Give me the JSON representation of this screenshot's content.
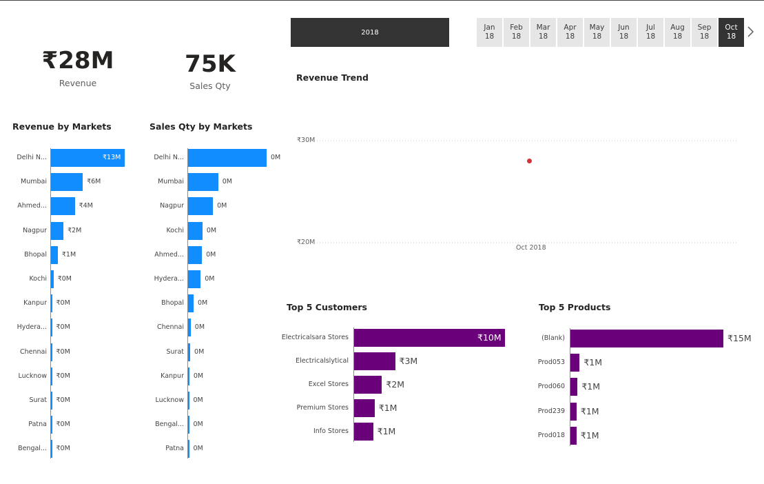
{
  "kpis": {
    "revenue": {
      "value": "₹28M",
      "label": "Revenue"
    },
    "sales_qty": {
      "value": "75K",
      "label": "Sales Qty"
    }
  },
  "year_slicer": {
    "label": "2018"
  },
  "month_slicer": {
    "months": [
      {
        "m": "Jan",
        "y": "18",
        "selected": false
      },
      {
        "m": "Feb",
        "y": "18",
        "selected": false
      },
      {
        "m": "Mar",
        "y": "18",
        "selected": false
      },
      {
        "m": "Apr",
        "y": "18",
        "selected": false
      },
      {
        "m": "May",
        "y": "18",
        "selected": false
      },
      {
        "m": "Jun",
        "y": "18",
        "selected": false
      },
      {
        "m": "Jul",
        "y": "18",
        "selected": false
      },
      {
        "m": "Aug",
        "y": "18",
        "selected": false
      },
      {
        "m": "Sep",
        "y": "18",
        "selected": false
      },
      {
        "m": "Oct",
        "y": "18",
        "selected": true
      }
    ]
  },
  "chart_data": [
    {
      "id": "revenue_by_markets",
      "type": "bar",
      "title": "Revenue by Markets",
      "categories": [
        "Delhi N...",
        "Mumbai",
        "Ahmed...",
        "Nagpur",
        "Bhopal",
        "Kochi",
        "Kanpur",
        "Hydera...",
        "Chennai",
        "Lucknow",
        "Surat",
        "Patna",
        "Bengal..."
      ],
      "values": [
        13,
        5.6,
        4.2,
        2.2,
        1.2,
        0.45,
        0.15,
        0.15,
        0.1,
        0.1,
        0.1,
        0.05,
        0.05
      ],
      "labels": [
        "₹13M",
        "₹6M",
        "₹4M",
        "₹2M",
        "₹1M",
        "₹0M",
        "₹0M",
        "₹0M",
        "₹0M",
        "₹0M",
        "₹0M",
        "₹0M",
        "₹0M"
      ],
      "unit": "₹M",
      "xlim": [
        0,
        13
      ]
    },
    {
      "id": "sales_qty_by_markets",
      "type": "bar",
      "title": "Sales Qty by Markets",
      "categories": [
        "Delhi N...",
        "Mumbai",
        "Nagpur",
        "Kochi",
        "Ahmed...",
        "Hydera...",
        "Bhopal",
        "Chennai",
        "Surat",
        "Kanpur",
        "Lucknow",
        "Bengal...",
        "Patna"
      ],
      "values": [
        30,
        11.5,
        9.5,
        5.5,
        5.3,
        4.8,
        2.1,
        1.0,
        0.8,
        0.5,
        0.4,
        0.3,
        0.25
      ],
      "labels": [
        "0M",
        "0M",
        "0M",
        "0M",
        "0M",
        "0M",
        "0M",
        "0M",
        "0M",
        "0M",
        "0M",
        "0M",
        "0M"
      ],
      "unit": "K",
      "xlim": [
        0,
        30
      ]
    },
    {
      "id": "revenue_trend",
      "type": "line",
      "title": "Revenue Trend",
      "x": [
        "Oct 2018"
      ],
      "y": [
        28
      ],
      "ylim": [
        20,
        30
      ],
      "yticks": [
        "₹30M",
        "₹20M"
      ],
      "ytick_values": [
        30,
        20
      ],
      "point_color": "#d13438"
    },
    {
      "id": "top5_customers",
      "type": "bar",
      "title": "Top 5 Customers",
      "categories": [
        "Electricalsara Stores",
        "Electricalslytical",
        "Excel Stores",
        "Premium Stores",
        "Info Stores"
      ],
      "values": [
        10.3,
        2.8,
        1.9,
        1.4,
        1.3
      ],
      "labels": [
        "₹10M",
        "₹3M",
        "₹2M",
        "₹1M",
        "₹1M"
      ],
      "unit": "₹M",
      "xlim": [
        0,
        10.3
      ]
    },
    {
      "id": "top5_products",
      "type": "bar",
      "title": "Top 5 Products",
      "categories": [
        "(Blank)",
        "Prod053",
        "Prod060",
        "Prod239",
        "Prod018"
      ],
      "values": [
        15,
        0.9,
        0.7,
        0.6,
        0.6
      ],
      "labels": [
        "₹15M",
        "₹1M",
        "₹1M",
        "₹1M",
        "₹1M"
      ],
      "unit": "₹M",
      "xlim": [
        0,
        15
      ]
    }
  ],
  "colors": {
    "blue_bar": "#118dff",
    "purple_bar": "#6b007b",
    "slicer_dark": "#333333",
    "slicer_light": "#e6e6e6",
    "trend_point": "#d13438"
  }
}
